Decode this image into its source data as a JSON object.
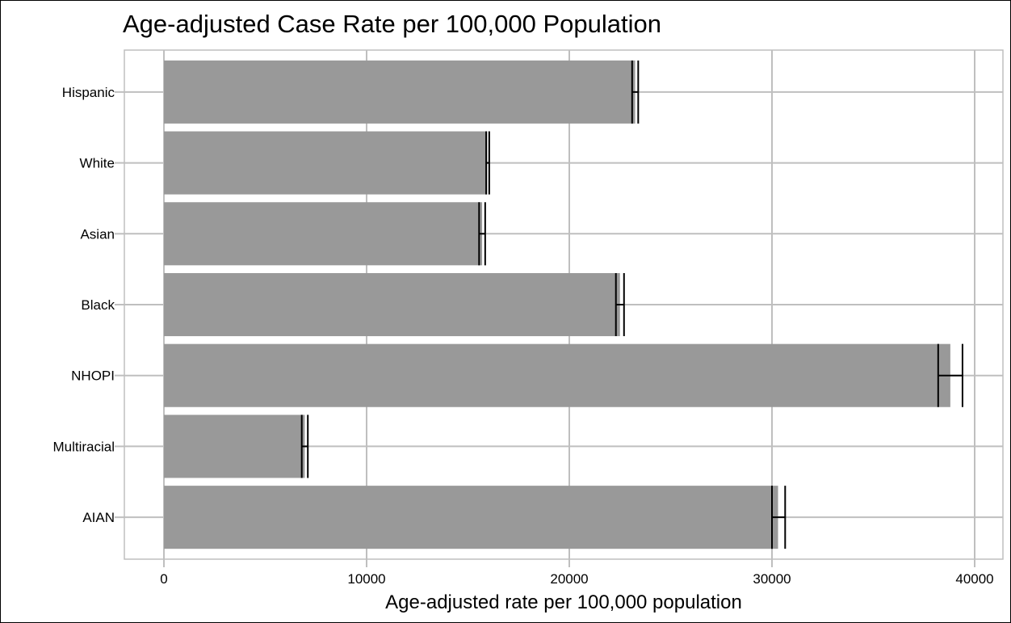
{
  "chart_data": {
    "type": "bar",
    "orientation": "horizontal",
    "title": "Age-adjusted Case Rate per 100,000 Population",
    "xlabel": "Age-adjusted rate per 100,000 population",
    "ylabel": "",
    "categories": [
      "Hispanic",
      "White",
      "Asian",
      "Black",
      "NHOPI",
      "Multiracial",
      "AIAN"
    ],
    "values": [
      23250,
      15950,
      15700,
      22500,
      38800,
      6950,
      30300
    ],
    "error_low": [
      23100,
      15900,
      15550,
      22300,
      38200,
      6800,
      30000
    ],
    "error_high": [
      23400,
      16050,
      15850,
      22700,
      39400,
      7100,
      30650
    ],
    "xlim": [
      -2000,
      41500
    ],
    "xticks": [
      0,
      10000,
      20000,
      30000,
      40000
    ],
    "xtick_labels": [
      "0",
      "10000",
      "20000",
      "30000",
      "40000"
    ],
    "grid": true,
    "legend": "none",
    "colors": {
      "bar": "#999999",
      "grid": "#bfbfbf",
      "error": "#000000"
    }
  }
}
